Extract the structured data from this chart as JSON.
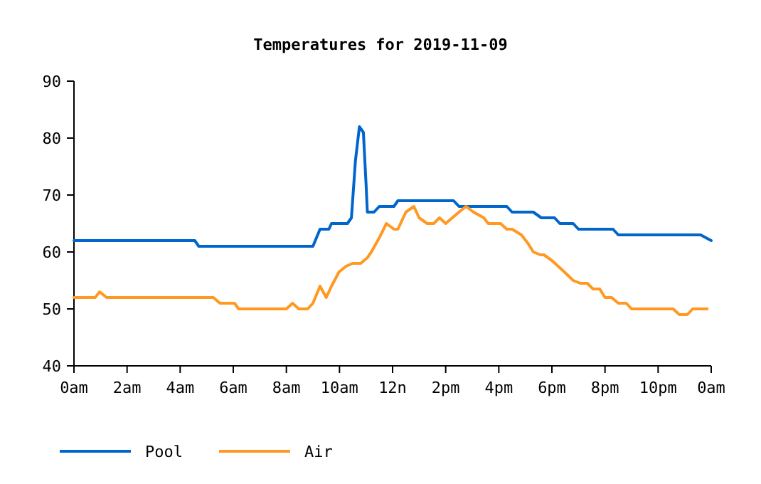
{
  "chart_data": {
    "type": "line",
    "title": "Temperatures for 2019-11-09",
    "xlim": [
      "2019-11-09T00:00",
      "2019-11-10T00:00"
    ],
    "ylim": [
      40,
      90
    ],
    "xticks": [
      {
        "value": "2019-11-09T00:00",
        "label": "0am"
      },
      {
        "value": "2019-11-09T02:00",
        "label": "2am"
      },
      {
        "value": "2019-11-09T04:00",
        "label": "4am"
      },
      {
        "value": "2019-11-09T06:00",
        "label": "6am"
      },
      {
        "value": "2019-11-09T08:00",
        "label": "8am"
      },
      {
        "value": "2019-11-09T10:00",
        "label": "10am"
      },
      {
        "value": "2019-11-09T12:00",
        "label": "12n"
      },
      {
        "value": "2019-11-09T14:00",
        "label": "2pm"
      },
      {
        "value": "2019-11-09T16:00",
        "label": "4pm"
      },
      {
        "value": "2019-11-09T18:00",
        "label": "6pm"
      },
      {
        "value": "2019-11-09T20:00",
        "label": "8pm"
      },
      {
        "value": "2019-11-09T22:00",
        "label": "10pm"
      },
      {
        "value": "2019-11-10T00:00",
        "label": "0am"
      }
    ],
    "yticks": [
      40,
      50,
      60,
      70,
      80,
      90
    ],
    "grid": false,
    "legend": "bottom",
    "marker": "none",
    "line_style": "solid",
    "series": [
      {
        "name": "Pool",
        "color": "#0066cc",
        "x": [
          "2019-11-09T00:00",
          "2019-11-09T04:33",
          "2019-11-09T04:42",
          "2019-11-09T09:00",
          "2019-11-09T09:16",
          "2019-11-09T09:36",
          "2019-11-09T09:42",
          "2019-11-09T10:18",
          "2019-11-09T10:27",
          "2019-11-09T10:36",
          "2019-11-09T10:45",
          "2019-11-09T10:54",
          "2019-11-09T11:00",
          "2019-11-09T11:03",
          "2019-11-09T11:18",
          "2019-11-09T11:30",
          "2019-11-09T12:03",
          "2019-11-09T12:12",
          "2019-11-09T14:18",
          "2019-11-09T14:30",
          "2019-11-09T16:18",
          "2019-11-09T16:30",
          "2019-11-09T17:18",
          "2019-11-09T17:36",
          "2019-11-09T18:06",
          "2019-11-09T18:18",
          "2019-11-09T18:48",
          "2019-11-09T19:00",
          "2019-11-09T20:18",
          "2019-11-09T20:30",
          "2019-11-09T23:36",
          "2019-11-09T23:48",
          "2019-11-10T00:00"
        ],
        "values": [
          62,
          62,
          61,
          61,
          64,
          64,
          65,
          65,
          66,
          76,
          82,
          81,
          72,
          67,
          67,
          68,
          68,
          69,
          69,
          68,
          68,
          67,
          67,
          66,
          66,
          65,
          65,
          64,
          64,
          63,
          63,
          62.5,
          62
        ]
      },
      {
        "name": "Air",
        "color": "#ff9922",
        "x": [
          "2019-11-09T00:00",
          "2019-11-09T00:48",
          "2019-11-09T00:58",
          "2019-11-09T01:14",
          "2019-11-09T05:15",
          "2019-11-09T05:30",
          "2019-11-09T06:03",
          "2019-11-09T06:12",
          "2019-11-09T08:00",
          "2019-11-09T08:14",
          "2019-11-09T08:28",
          "2019-11-09T08:48",
          "2019-11-09T09:00",
          "2019-11-09T09:16",
          "2019-11-09T09:30",
          "2019-11-09T09:42",
          "2019-11-09T09:59",
          "2019-11-09T10:15",
          "2019-11-09T10:30",
          "2019-11-09T10:48",
          "2019-11-09T11:03",
          "2019-11-09T11:12",
          "2019-11-09T11:30",
          "2019-11-09T11:46",
          "2019-11-09T12:03",
          "2019-11-09T12:12",
          "2019-11-09T12:30",
          "2019-11-09T12:48",
          "2019-11-09T13:00",
          "2019-11-09T13:18",
          "2019-11-09T13:33",
          "2019-11-09T13:46",
          "2019-11-09T14:00",
          "2019-11-09T14:15",
          "2019-11-09T14:30",
          "2019-11-09T14:46",
          "2019-11-09T15:03",
          "2019-11-09T15:26",
          "2019-11-09T15:36",
          "2019-11-09T16:04",
          "2019-11-09T16:18",
          "2019-11-09T16:30",
          "2019-11-09T16:51",
          "2019-11-09T17:06",
          "2019-11-09T17:18",
          "2019-11-09T17:34",
          "2019-11-09T17:42",
          "2019-11-09T18:00",
          "2019-11-09T18:28",
          "2019-11-09T18:48",
          "2019-11-09T19:04",
          "2019-11-09T19:20",
          "2019-11-09T19:33",
          "2019-11-09T19:48",
          "2019-11-09T20:00",
          "2019-11-09T20:15",
          "2019-11-09T20:30",
          "2019-11-09T20:48",
          "2019-11-09T21:00",
          "2019-11-09T22:34",
          "2019-11-09T22:48",
          "2019-11-09T23:06",
          "2019-11-09T23:18",
          "2019-11-09T23:51"
        ],
        "values": [
          52,
          52,
          53,
          52,
          52,
          51,
          51,
          50,
          50,
          51,
          50,
          50,
          51,
          54,
          52,
          54,
          56.5,
          57.5,
          58,
          58,
          59,
          60,
          62.5,
          65,
          64,
          64,
          67,
          68,
          66,
          65,
          65,
          66,
          65,
          66,
          67,
          68,
          67,
          66,
          65,
          65,
          64,
          64,
          63,
          61.5,
          60,
          59.5,
          59.5,
          58.5,
          56.5,
          55,
          54.5,
          54.5,
          53.5,
          53.5,
          52,
          52,
          51,
          51,
          50,
          50,
          49,
          49,
          50,
          50
        ]
      }
    ]
  }
}
